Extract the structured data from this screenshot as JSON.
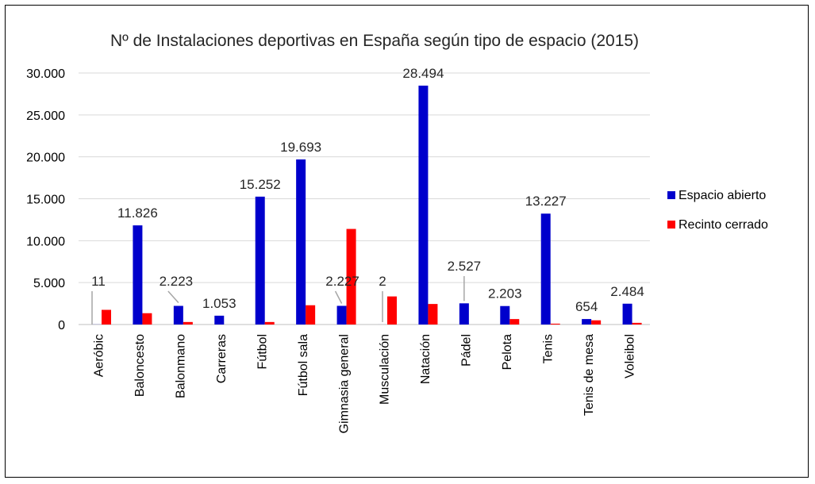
{
  "chart_data": {
    "type": "bar",
    "title": "Nº de Instalaciones deportivas en España según tipo de espacio (2015)",
    "categories": [
      "Aeróbic",
      "Baloncesto",
      "Balonmano",
      "Carreras",
      "Fútbol",
      "Fútbol sala",
      "Gimnasia general",
      "Musculación",
      "Natación",
      "Pádel",
      "Pelota",
      "Tenis",
      "Tenis de mesa",
      "Voleibol"
    ],
    "series": [
      {
        "name": "Espacio abierto",
        "color": "#0000cc",
        "values": [
          11,
          11826,
          2223,
          1053,
          15252,
          19693,
          2227,
          2,
          28494,
          2527,
          2203,
          13227,
          654,
          2484
        ],
        "labels": [
          "11",
          "11.826",
          "2.223",
          "1.053",
          "15.252",
          "19.693",
          "2.227",
          "2",
          "28.494",
          "2.527",
          "2.203",
          "13.227",
          "654",
          "2.484"
        ]
      },
      {
        "name": "Recinto cerrado",
        "color": "#ff0000",
        "values": [
          1750,
          1350,
          300,
          0,
          300,
          2300,
          11400,
          3350,
          2450,
          0,
          650,
          100,
          500,
          200
        ]
      }
    ],
    "yticks": [
      "30.000",
      "25.000",
      "20.000",
      "15.000",
      "10.000",
      "5.000",
      "0"
    ],
    "ylim": [
      0,
      30000
    ],
    "grid": true,
    "legend_position": "right"
  }
}
